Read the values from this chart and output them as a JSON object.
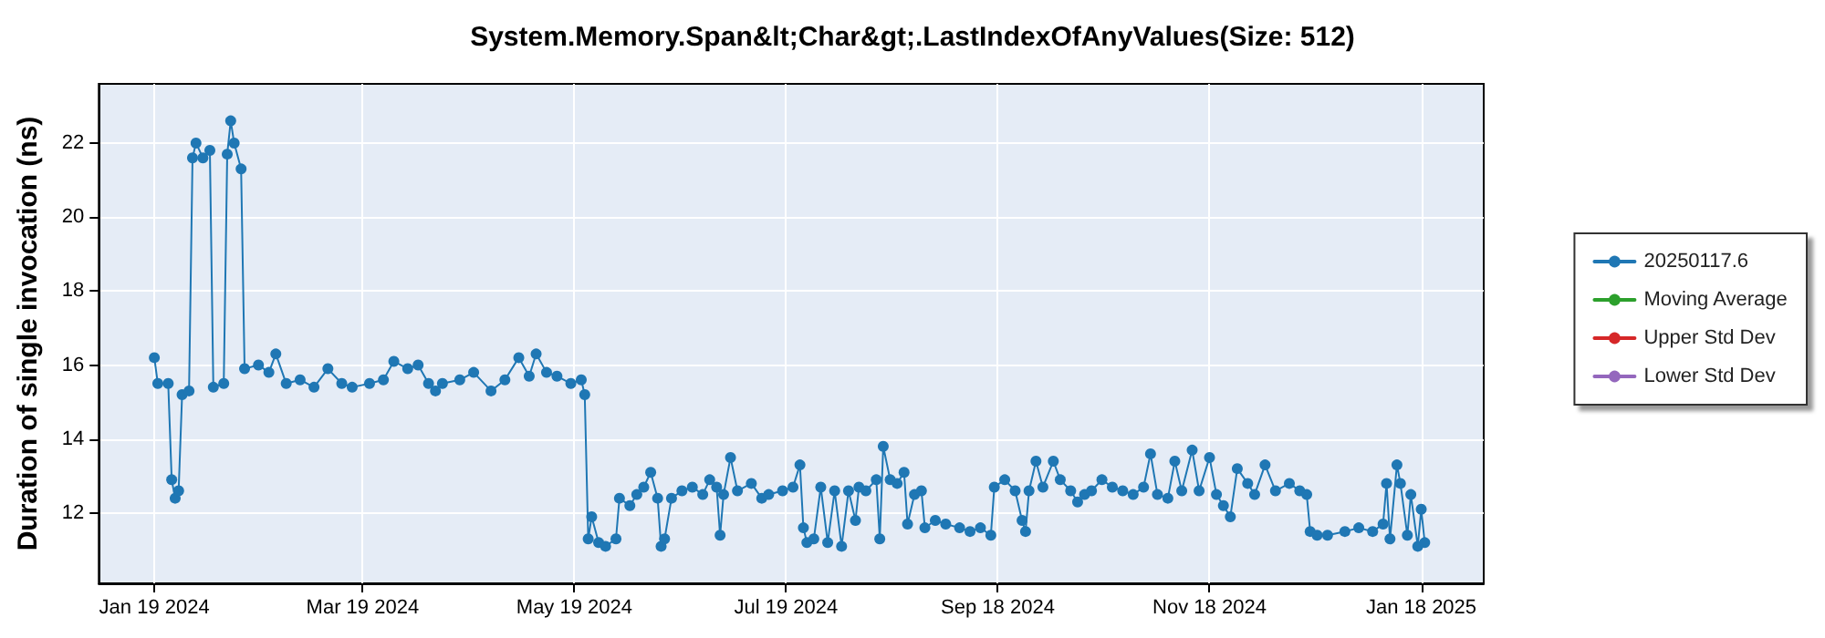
{
  "chart_data": {
    "type": "line",
    "title": "System.Memory.Span&lt;Char&gt;.LastIndexOfAnyValues(Size: 512)",
    "ylabel": "Duration of single invocation (ns)",
    "x": [
      "2024-01-19",
      "2024-01-20",
      "2024-01-23",
      "2024-01-24",
      "2024-01-25",
      "2024-01-26",
      "2024-01-27",
      "2024-01-29",
      "2024-01-30",
      "2024-01-31",
      "2024-02-02",
      "2024-02-04",
      "2024-02-05",
      "2024-02-08",
      "2024-02-09",
      "2024-02-10",
      "2024-02-11",
      "2024-02-13",
      "2024-02-14",
      "2024-02-18",
      "2024-02-21",
      "2024-02-23",
      "2024-02-26",
      "2024-03-01",
      "2024-03-05",
      "2024-03-09",
      "2024-03-13",
      "2024-03-16",
      "2024-03-21",
      "2024-03-25",
      "2024-03-28",
      "2024-04-01",
      "2024-04-04",
      "2024-04-07",
      "2024-04-09",
      "2024-04-11",
      "2024-04-16",
      "2024-04-20",
      "2024-04-25",
      "2024-04-29",
      "2024-05-03",
      "2024-05-06",
      "2024-05-08",
      "2024-05-11",
      "2024-05-14",
      "2024-05-18",
      "2024-05-21",
      "2024-05-22",
      "2024-05-23",
      "2024-05-24",
      "2024-05-26",
      "2024-05-28",
      "2024-05-31",
      "2024-06-01",
      "2024-06-04",
      "2024-06-06",
      "2024-06-08",
      "2024-06-10",
      "2024-06-12",
      "2024-06-13",
      "2024-06-14",
      "2024-06-16",
      "2024-06-19",
      "2024-06-22",
      "2024-06-25",
      "2024-06-27",
      "2024-06-29",
      "2024-06-30",
      "2024-07-01",
      "2024-07-03",
      "2024-07-05",
      "2024-07-09",
      "2024-07-12",
      "2024-07-14",
      "2024-07-18",
      "2024-07-21",
      "2024-07-23",
      "2024-07-24",
      "2024-07-25",
      "2024-07-27",
      "2024-07-29",
      "2024-07-31",
      "2024-08-02",
      "2024-08-04",
      "2024-08-06",
      "2024-08-08",
      "2024-08-09",
      "2024-08-11",
      "2024-08-14",
      "2024-08-15",
      "2024-08-16",
      "2024-08-18",
      "2024-08-20",
      "2024-08-22",
      "2024-08-23",
      "2024-08-25",
      "2024-08-27",
      "2024-08-28",
      "2024-08-31",
      "2024-09-03",
      "2024-09-07",
      "2024-09-10",
      "2024-09-13",
      "2024-09-16",
      "2024-09-17",
      "2024-09-20",
      "2024-09-23",
      "2024-09-25",
      "2024-09-26",
      "2024-09-27",
      "2024-09-29",
      "2024-10-01",
      "2024-10-04",
      "2024-10-06",
      "2024-10-09",
      "2024-10-11",
      "2024-10-13",
      "2024-10-15",
      "2024-10-18",
      "2024-10-21",
      "2024-10-24",
      "2024-10-27",
      "2024-10-30",
      "2024-11-01",
      "2024-11-03",
      "2024-11-06",
      "2024-11-08",
      "2024-11-10",
      "2024-11-13",
      "2024-11-15",
      "2024-11-18",
      "2024-11-20",
      "2024-11-22",
      "2024-11-24",
      "2024-11-26",
      "2024-11-29",
      "2024-12-01",
      "2024-12-04",
      "2024-12-07",
      "2024-12-11",
      "2024-12-14",
      "2024-12-16",
      "2024-12-17",
      "2024-12-19",
      "2024-12-22",
      "2024-12-27",
      "2024-12-31",
      "2025-01-04",
      "2025-01-07",
      "2025-01-08",
      "2025-01-09",
      "2025-01-11",
      "2025-01-12",
      "2025-01-14",
      "2025-01-15",
      "2025-01-17",
      "2025-01-18",
      "2025-01-19"
    ],
    "series": [
      {
        "name": "20250117.6",
        "color": "#1f77b4",
        "values": [
          16.2,
          15.5,
          15.5,
          12.9,
          12.4,
          12.6,
          15.2,
          15.3,
          21.6,
          22.0,
          21.6,
          21.8,
          15.4,
          15.5,
          21.7,
          22.6,
          22.0,
          21.3,
          15.9,
          16.0,
          15.8,
          16.3,
          15.5,
          15.6,
          15.4,
          15.9,
          15.5,
          15.4,
          15.5,
          15.6,
          16.1,
          15.9,
          16.0,
          15.5,
          15.3,
          15.5,
          15.6,
          15.8,
          15.3,
          15.6,
          16.2,
          15.7,
          16.3,
          15.8,
          15.7,
          15.5,
          15.6,
          15.2,
          11.3,
          11.9,
          11.2,
          11.1,
          11.3,
          12.4,
          12.2,
          12.5,
          12.7,
          13.1,
          12.4,
          11.1,
          11.3,
          12.4,
          12.6,
          12.7,
          12.5,
          12.9,
          12.7,
          11.4,
          12.5,
          13.5,
          12.6,
          12.8,
          12.4,
          12.5,
          12.6,
          12.7,
          13.3,
          11.6,
          11.2,
          11.3,
          12.7,
          11.2,
          12.6,
          11.1,
          12.6,
          11.8,
          12.7,
          12.6,
          12.9,
          11.3,
          13.8,
          12.9,
          12.8,
          13.1,
          11.7,
          12.5,
          12.6,
          11.6,
          11.8,
          11.7,
          11.6,
          11.5,
          11.6,
          11.4,
          12.7,
          12.9,
          12.6,
          11.8,
          11.5,
          12.6,
          13.4,
          12.7,
          13.4,
          12.9,
          12.6,
          12.3,
          12.5,
          12.6,
          12.9,
          12.7,
          12.6,
          12.5,
          12.7,
          13.6,
          12.5,
          12.4,
          13.4,
          12.6,
          13.7,
          12.6,
          13.5,
          12.5,
          12.2,
          11.9,
          13.2,
          12.8,
          12.5,
          13.3,
          12.6,
          12.8,
          12.6,
          12.5,
          11.5,
          11.4,
          11.4,
          11.5,
          11.6,
          11.5,
          11.7,
          12.8,
          11.3,
          13.3,
          12.8,
          11.4,
          12.5,
          11.1,
          12.1,
          11.2
        ]
      },
      {
        "name": "Moving Average",
        "color": "#2ca02c",
        "values": [
          null,
          null,
          null,
          null,
          null,
          null,
          null,
          null,
          null,
          null,
          null,
          null,
          null,
          null,
          null,
          null,
          null,
          null,
          null,
          null,
          null,
          null,
          null,
          null,
          null,
          null,
          null,
          null,
          null,
          null,
          null,
          null,
          null,
          null,
          null,
          null,
          null,
          null,
          null,
          null,
          null,
          null,
          null,
          null,
          null,
          null,
          null,
          null,
          null,
          null,
          null,
          null,
          null,
          null,
          null,
          null,
          null,
          null,
          null,
          null,
          null,
          null,
          null,
          null,
          null,
          null,
          null,
          null,
          null,
          null,
          null,
          null,
          null,
          null,
          null,
          null,
          null,
          null,
          null,
          null,
          null,
          null,
          null,
          null,
          null,
          null,
          null,
          null,
          null,
          null,
          null,
          null,
          null,
          null,
          null,
          null,
          null,
          null,
          null,
          null,
          null,
          null,
          null,
          null,
          null,
          null,
          null,
          null,
          null,
          null,
          null,
          null,
          null,
          null,
          null,
          null,
          null,
          null,
          null,
          null,
          null,
          null,
          null,
          null,
          null,
          null,
          null,
          null,
          null,
          null,
          null,
          null,
          null,
          null,
          null,
          null,
          null,
          null,
          null,
          null,
          null,
          null,
          null,
          null,
          null,
          null,
          null,
          null,
          null,
          null,
          null,
          null,
          null,
          null,
          null,
          null,
          null,
          null
        ]
      },
      {
        "name": "Upper Std Dev",
        "color": "#d62728",
        "values": [
          null,
          null,
          null,
          null,
          null,
          null,
          null,
          null,
          null,
          null,
          null,
          null,
          null,
          null,
          null,
          null,
          null,
          null,
          null,
          null,
          null,
          null,
          null,
          null,
          null,
          null,
          null,
          null,
          null,
          null,
          null,
          null,
          null,
          null,
          null,
          null,
          null,
          null,
          null,
          null,
          null,
          null,
          null,
          null,
          null,
          null,
          null,
          null,
          null,
          null,
          null,
          null,
          null,
          null,
          null,
          null,
          null,
          null,
          null,
          null,
          null,
          null,
          null,
          null,
          null,
          null,
          null,
          null,
          null,
          null,
          null,
          null,
          null,
          null,
          null,
          null,
          null,
          null,
          null,
          null,
          null,
          null,
          null,
          null,
          null,
          null,
          null,
          null,
          null,
          null,
          null,
          null,
          null,
          null,
          null,
          null,
          null,
          null,
          null,
          null,
          null,
          null,
          null,
          null,
          null,
          null,
          null,
          null,
          null,
          null,
          null,
          null,
          null,
          null,
          null,
          null,
          null,
          null,
          null,
          null,
          null,
          null,
          null,
          null,
          null,
          null,
          null,
          null,
          null,
          null,
          null,
          null,
          null,
          null,
          null,
          null,
          null,
          null,
          null,
          null,
          null,
          null,
          null,
          null,
          null,
          null,
          null,
          null,
          null,
          null,
          null,
          null,
          null,
          null,
          null,
          null,
          null,
          null
        ]
      },
      {
        "name": "Lower Std Dev",
        "color": "#9467bd",
        "values": [
          null,
          null,
          null,
          null,
          null,
          null,
          null,
          null,
          null,
          null,
          null,
          null,
          null,
          null,
          null,
          null,
          null,
          null,
          null,
          null,
          null,
          null,
          null,
          null,
          null,
          null,
          null,
          null,
          null,
          null,
          null,
          null,
          null,
          null,
          null,
          null,
          null,
          null,
          null,
          null,
          null,
          null,
          null,
          null,
          null,
          null,
          null,
          null,
          null,
          null,
          null,
          null,
          null,
          null,
          null,
          null,
          null,
          null,
          null,
          null,
          null,
          null,
          null,
          null,
          null,
          null,
          null,
          null,
          null,
          null,
          null,
          null,
          null,
          null,
          null,
          null,
          null,
          null,
          null,
          null,
          null,
          null,
          null,
          null,
          null,
          null,
          null,
          null,
          null,
          null,
          null,
          null,
          null,
          null,
          null,
          null,
          null,
          null,
          null,
          null,
          null,
          null,
          null,
          null,
          null,
          null,
          null,
          null,
          null,
          null,
          null,
          null,
          null,
          null,
          null,
          null,
          null,
          null,
          null,
          null,
          null,
          null,
          null,
          null,
          null,
          null,
          null,
          null,
          null,
          null,
          null,
          null,
          null,
          null,
          null,
          null,
          null,
          null,
          null,
          null,
          null,
          null,
          null,
          null,
          null,
          null,
          null,
          null,
          null,
          null,
          null,
          null,
          null,
          null,
          null,
          null,
          null,
          null
        ]
      }
    ],
    "xlim": [
      "2024-01-03",
      "2025-02-05"
    ],
    "xticks": [
      {
        "value": "2024-01-19",
        "label": "Jan 19 2024"
      },
      {
        "value": "2024-03-19",
        "label": "Mar 19 2024"
      },
      {
        "value": "2024-05-19",
        "label": "May 19 2024"
      },
      {
        "value": "2024-07-19",
        "label": "Jul 19 2024"
      },
      {
        "value": "2024-09-18",
        "label": "Sep 18 2024"
      },
      {
        "value": "2024-11-18",
        "label": "Nov 18 2024"
      },
      {
        "value": "2025-01-18",
        "label": "Jan 18 2025"
      }
    ],
    "ylim": [
      10.1,
      23.6
    ],
    "yticks": [
      12,
      14,
      16,
      18,
      20,
      22
    ],
    "grid": true,
    "legend": "right",
    "marker": "circle",
    "line_style": "solid"
  }
}
